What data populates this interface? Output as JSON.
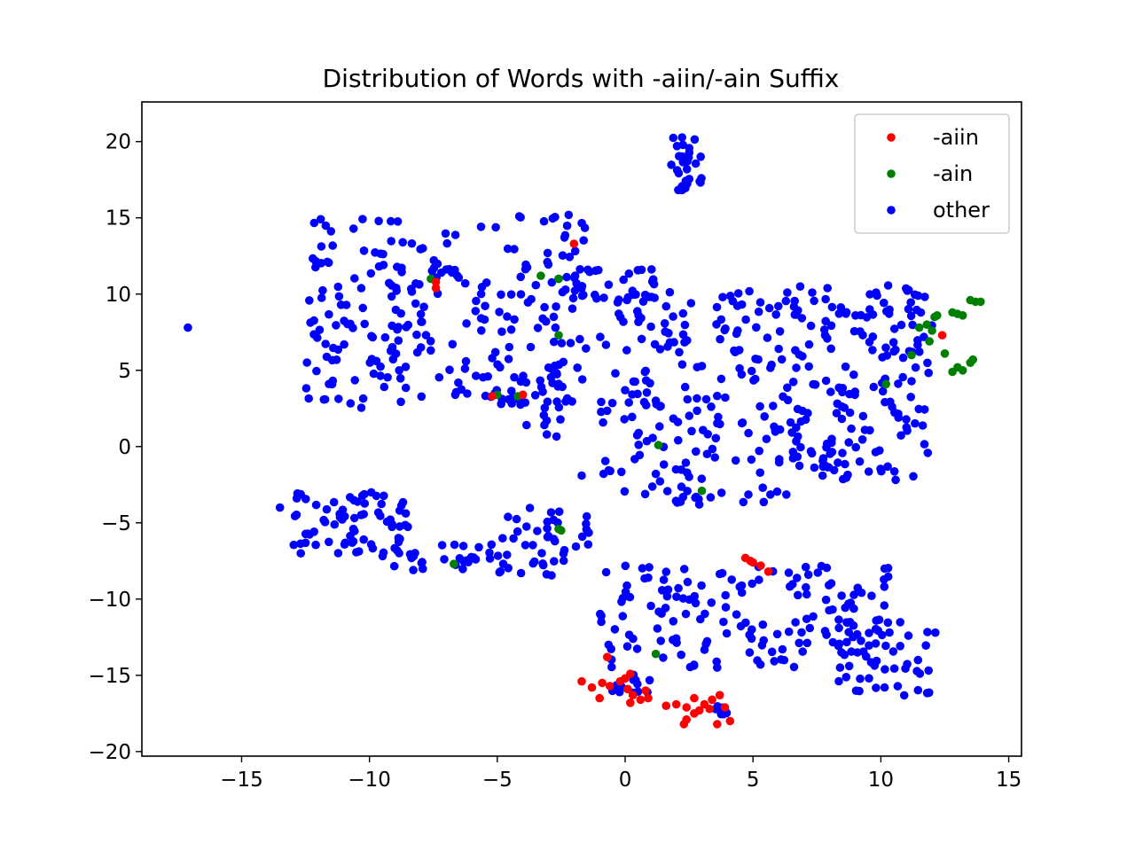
{
  "chart_data": {
    "type": "scatter",
    "title": "Distribution of Words with -aiin/-ain Suffix",
    "xlabel": "",
    "ylabel": "",
    "xlim": [
      -18.9,
      15.5
    ],
    "ylim": [
      -20.3,
      22.6
    ],
    "xticks": [
      -15,
      -10,
      -5,
      0,
      5,
      10,
      15
    ],
    "yticks": [
      -20,
      -15,
      -10,
      -5,
      0,
      5,
      10,
      15,
      20
    ],
    "xtick_labels": [
      "−15",
      "−10",
      "−5",
      "0",
      "5",
      "10",
      "15"
    ],
    "ytick_labels": [
      "−20",
      "−15",
      "−10",
      "−5",
      "0",
      "5",
      "10",
      "15",
      "20"
    ],
    "grid": false,
    "legend_position": "upper right",
    "series": [
      {
        "name": "-aiin",
        "color": "#ff0000",
        "points": [
          [
            -7.4,
            10.8
          ],
          [
            -7.4,
            10.4
          ],
          [
            -5.2,
            3.3
          ],
          [
            -4.0,
            3.4
          ],
          [
            -2.0,
            13.3
          ],
          [
            12.4,
            7.3
          ],
          [
            4.7,
            -7.3
          ],
          [
            5.0,
            -7.6
          ],
          [
            5.3,
            -7.8
          ],
          [
            5.6,
            -8.2
          ],
          [
            4.9,
            -7.5
          ],
          [
            -0.7,
            -13.8
          ],
          [
            -1.7,
            -15.4
          ],
          [
            -1.3,
            -15.8
          ],
          [
            -1.0,
            -16.5
          ],
          [
            -0.6,
            -15.7
          ],
          [
            -0.2,
            -15.4
          ],
          [
            0.1,
            -15.9
          ],
          [
            0.3,
            -16.3
          ],
          [
            0.6,
            -16.6
          ],
          [
            0.2,
            -16.8
          ],
          [
            0.8,
            -16.0
          ],
          [
            0.9,
            -16.5
          ],
          [
            0.0,
            -15.2
          ],
          [
            0.2,
            -14.9
          ],
          [
            -0.9,
            -15.5
          ],
          [
            1.6,
            -17.0
          ],
          [
            2.0,
            -16.9
          ],
          [
            2.4,
            -17.1
          ],
          [
            2.7,
            -16.5
          ],
          [
            2.9,
            -17.3
          ],
          [
            3.1,
            -16.9
          ],
          [
            3.4,
            -16.6
          ],
          [
            3.7,
            -16.3
          ],
          [
            3.9,
            -17.1
          ],
          [
            4.1,
            -18.0
          ],
          [
            2.3,
            -18.2
          ],
          [
            2.4,
            -17.9
          ],
          [
            3.6,
            -18.2
          ],
          [
            2.7,
            -17.5
          ],
          [
            3.3,
            -17.2
          ]
        ]
      },
      {
        "name": "-ain",
        "color": "#008000",
        "points": [
          [
            -7.6,
            11.0
          ],
          [
            -3.3,
            11.2
          ],
          [
            -2.6,
            11.0
          ],
          [
            -2.6,
            7.3
          ],
          [
            -5.0,
            3.4
          ],
          [
            -4.2,
            3.3
          ],
          [
            1.3,
            0.1
          ],
          [
            3.0,
            -2.9
          ],
          [
            -2.6,
            -5.4
          ],
          [
            -2.5,
            -5.5
          ],
          [
            -6.7,
            -7.7
          ],
          [
            1.2,
            -13.6
          ],
          [
            11.5,
            7.8
          ],
          [
            11.8,
            8.0
          ],
          [
            12.0,
            7.6
          ],
          [
            12.1,
            8.5
          ],
          [
            12.2,
            8.6
          ],
          [
            11.9,
            6.9
          ],
          [
            11.2,
            6.0
          ],
          [
            12.5,
            6.1
          ],
          [
            12.8,
            8.8
          ],
          [
            13.0,
            8.7
          ],
          [
            13.2,
            8.6
          ],
          [
            13.5,
            9.6
          ],
          [
            13.7,
            9.5
          ],
          [
            13.9,
            9.5
          ],
          [
            12.8,
            4.9
          ],
          [
            13.0,
            5.2
          ],
          [
            13.2,
            5.0
          ],
          [
            13.5,
            5.5
          ],
          [
            13.6,
            5.7
          ],
          [
            10.2,
            4.1
          ]
        ]
      },
      {
        "name": "other",
        "color": "#0000ff",
        "clusters": [
          {
            "n": 260,
            "xr": [
              -12.5,
              -1.5
            ],
            "yr": [
              2.5,
              15.3
            ]
          },
          {
            "n": 28,
            "xr": [
              -2.0,
              1.3
            ],
            "yr": [
              9.2,
              11.8
            ]
          },
          {
            "n": 22,
            "xr": [
              -4.6,
              -2.5
            ],
            "yr": [
              0.3,
              4.5
            ]
          },
          {
            "n": 30,
            "xr": [
              1.8,
              3.0
            ],
            "yr": [
              16.8,
              20.6
            ]
          },
          {
            "n": 200,
            "xr": [
              -1.0,
              6.8
            ],
            "yr": [
              -3.8,
              10.2
            ]
          },
          {
            "n": 170,
            "xr": [
              6.5,
              12.0
            ],
            "yr": [
              -2.2,
              10.6
            ]
          },
          {
            "n": 70,
            "xr": [
              -13.0,
              -8.5
            ],
            "yr": [
              -7.0,
              -3.0
            ]
          },
          {
            "n": 30,
            "xr": [
              -9.5,
              -5.0
            ],
            "yr": [
              -8.2,
              -6.2
            ]
          },
          {
            "n": 45,
            "xr": [
              -5.0,
              -1.3
            ],
            "yr": [
              -8.6,
              -4.0
            ]
          },
          {
            "n": 150,
            "xr": [
              -1.0,
              10.5
            ],
            "yr": [
              -14.6,
              -7.8
            ]
          },
          {
            "n": 50,
            "xr": [
              8.3,
              12.4
            ],
            "yr": [
              -16.5,
              -11.5
            ]
          },
          {
            "n": 14,
            "xr": [
              -0.6,
              1.0
            ],
            "yr": [
              -16.2,
              -14.9
            ]
          },
          {
            "n": 6,
            "xr": [
              3.4,
              4.0
            ],
            "yr": [
              -17.6,
              -17.0
            ]
          }
        ],
        "points": [
          [
            -17.1,
            7.8
          ],
          [
            -13.5,
            -4.0
          ],
          [
            -1.7,
            -1.9
          ],
          [
            0.9,
            -8.6
          ],
          [
            3.8,
            -8.3
          ]
        ]
      }
    ]
  }
}
